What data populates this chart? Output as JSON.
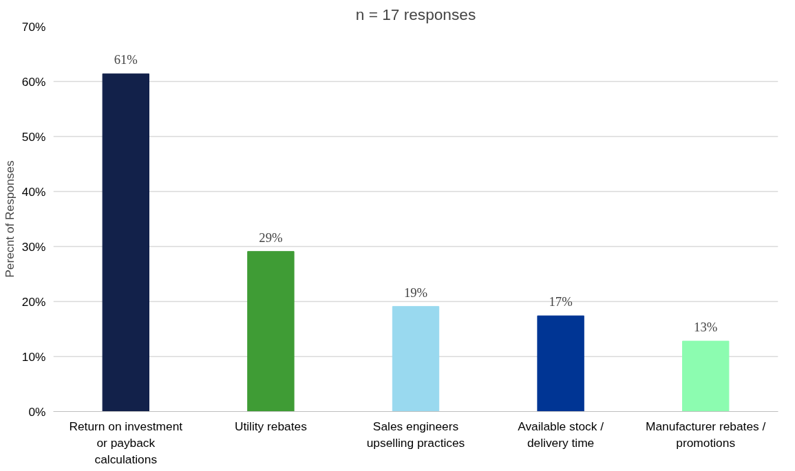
{
  "chart_data": {
    "type": "bar",
    "title": "n = 17 responses",
    "ylabel": "Perecnt of Responses",
    "categories": [
      "Return on investment or payback calculations",
      "Utility rebates",
      "Sales engineers upselling practices",
      "Available stock / delivery time",
      "Manufacturer rebates / promotions"
    ],
    "values": [
      61.4,
      29.1,
      19.1,
      17.4,
      12.8
    ],
    "value_labels": [
      "61%",
      "29%",
      "19%",
      "17%",
      "13%"
    ],
    "colors": [
      "#12214a",
      "#3f9c35",
      "#99d9ef",
      "#003594",
      "#8cfcb0"
    ],
    "ylim": [
      0,
      70
    ],
    "yticks": [
      {
        "value": 0,
        "label": "0%"
      },
      {
        "value": 10,
        "label": "10%"
      },
      {
        "value": 20,
        "label": "20%"
      },
      {
        "value": 30,
        "label": "30%"
      },
      {
        "value": 40,
        "label": "40%"
      },
      {
        "value": 50,
        "label": "50%"
      },
      {
        "value": 60,
        "label": "60%"
      },
      {
        "value": 70,
        "label": "70%"
      }
    ],
    "grid": "y"
  }
}
